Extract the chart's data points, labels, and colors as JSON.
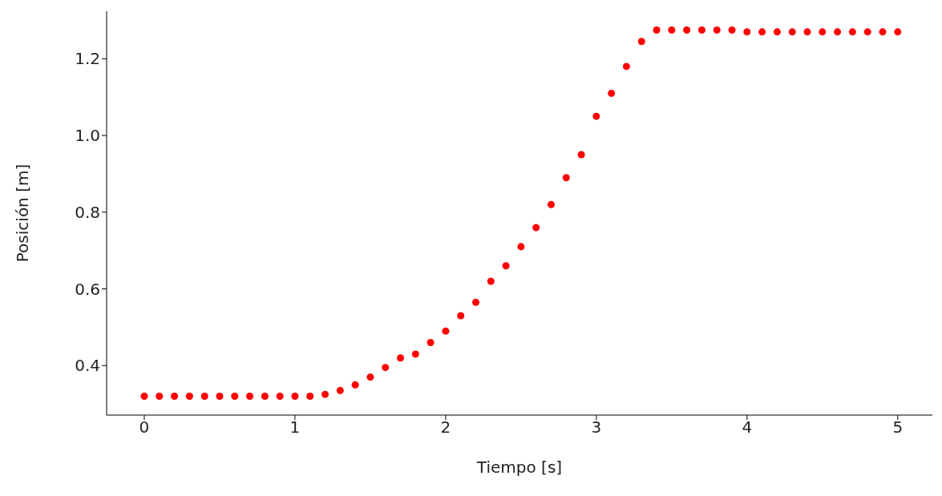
{
  "chart_data": {
    "type": "scatter",
    "xlabel": "Tiempo [s]",
    "ylabel": "Posición [m]",
    "marker": "circle",
    "grid": false,
    "xlim": [
      -0.25,
      5.23
    ],
    "ylim": [
      0.271,
      1.324
    ],
    "xticks": [
      0,
      1,
      2,
      3,
      4,
      5
    ],
    "yticks": [
      {
        "value": 0.4,
        "label": "0.4"
      },
      {
        "value": 0.6,
        "label": "0.6"
      },
      {
        "value": 0.8,
        "label": "0.8"
      },
      {
        "value": 1.0,
        "label": "1.0"
      },
      {
        "value": 1.2,
        "label": "1.2"
      }
    ],
    "x": [
      0,
      0.1,
      0.2,
      0.3,
      0.4,
      0.5,
      0.6,
      0.7,
      0.8,
      0.9,
      1.0,
      1.1,
      1.2,
      1.3,
      1.4,
      1.5,
      1.6,
      1.7,
      1.8,
      1.9,
      2.0,
      2.1,
      2.2,
      2.3,
      2.4,
      2.5,
      2.6,
      2.7,
      2.8,
      2.9,
      3.0,
      3.1,
      3.2,
      3.3,
      3.4,
      3.5,
      3.6,
      3.7,
      3.8,
      3.9,
      4.0,
      4.1,
      4.2,
      4.3,
      4.4,
      4.5,
      4.6,
      4.7,
      4.8,
      4.9,
      5.0
    ],
    "series": [
      {
        "color": "#ff0000",
        "values": [
          0.32,
          0.32,
          0.32,
          0.32,
          0.32,
          0.32,
          0.32,
          0.32,
          0.32,
          0.32,
          0.32,
          0.32,
          0.325,
          0.335,
          0.35,
          0.37,
          0.395,
          0.42,
          0.43,
          0.46,
          0.49,
          0.53,
          0.565,
          0.62,
          0.66,
          0.71,
          0.76,
          0.82,
          0.89,
          0.95,
          1.05,
          1.11,
          1.18,
          1.245,
          1.275,
          1.275,
          1.275,
          1.275,
          1.275,
          1.275,
          1.27,
          1.27,
          1.27,
          1.27,
          1.27,
          1.27,
          1.27,
          1.27,
          1.27,
          1.27,
          1.27
        ]
      }
    ]
  }
}
